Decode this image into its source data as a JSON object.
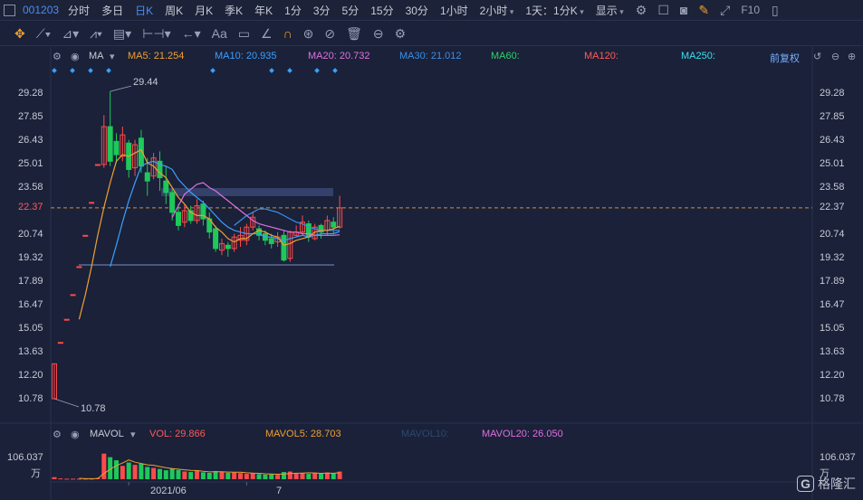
{
  "toolbar": {
    "code": "001203",
    "periods": [
      "分时",
      "多日",
      "日K",
      "周K",
      "月K",
      "季K",
      "年K",
      "1分",
      "3分",
      "5分",
      "15分",
      "30分",
      "1小时",
      "2小时"
    ],
    "active_period": "日K",
    "multi": "1天：1分K",
    "display": "显示",
    "f10": "F10"
  },
  "drawing_tools": {
    "text_tool": "Aa"
  },
  "ma_legend": {
    "ma": "MA",
    "ma5": "MA5: 21.254",
    "ma10": "MA10: 20.935",
    "ma20": "MA20: 20.732",
    "ma30": "MA30: 21.012",
    "ma60": "MA60:",
    "ma120": "MA120:",
    "ma250": "MA250:",
    "adjust": "前复权"
  },
  "price_axis": {
    "labels": [
      "29.28",
      "27.85",
      "26.43",
      "25.01",
      "23.58",
      "22.37",
      "20.74",
      "19.32",
      "17.89",
      "16.47",
      "15.05",
      "13.63",
      "12.20",
      "10.78"
    ],
    "current": "22.37",
    "high_mark": "29.44",
    "low_mark": "10.78"
  },
  "vol_legend": {
    "name": "MAVOL",
    "vol": "VOL: 29.866",
    "mavol5": "MAVOL5: 28.703",
    "mavol10": "MAVOL10:",
    "mavol20": "MAVOL20: 26.050"
  },
  "vol_axis": {
    "value": "106.037",
    "unit": "万"
  },
  "x_axis": {
    "labels": [
      "2021/06",
      "7"
    ]
  },
  "colors": {
    "up": "#ff4a4a",
    "down": "#1ec85a",
    "ma5": "#f0a030",
    "ma10": "#3aa0ff",
    "ma20": "#e070e0",
    "ma30": "#3a8fe8"
  },
  "chart_data": {
    "type": "candlestick",
    "ylim": [
      10.78,
      29.28
    ],
    "candles": [
      {
        "o": 10.78,
        "c": 12.9,
        "h": 12.9,
        "l": 10.78
      },
      {
        "o": 14.2,
        "c": 14.2,
        "h": 14.2,
        "l": 14.2
      },
      {
        "o": 15.6,
        "c": 15.6,
        "h": 15.6,
        "l": 15.6
      },
      {
        "o": 17.1,
        "c": 17.1,
        "h": 17.1,
        "l": 17.1
      },
      {
        "o": 18.8,
        "c": 18.8,
        "h": 18.8,
        "l": 18.8
      },
      {
        "o": 20.7,
        "c": 20.7,
        "h": 20.7,
        "l": 20.7
      },
      {
        "o": 22.7,
        "c": 22.7,
        "h": 22.7,
        "l": 22.7
      },
      {
        "o": 25.0,
        "c": 25.0,
        "h": 25.0,
        "l": 25.0
      },
      {
        "o": 25.0,
        "c": 27.3,
        "h": 28.0,
        "l": 24.8
      },
      {
        "o": 27.3,
        "c": 25.2,
        "h": 29.44,
        "l": 24.9
      },
      {
        "o": 26.4,
        "c": 25.6,
        "h": 26.9,
        "l": 25.1
      },
      {
        "o": 25.5,
        "c": 26.8,
        "h": 27.3,
        "l": 25.2
      },
      {
        "o": 26.3,
        "c": 24.7,
        "h": 26.5,
        "l": 24.2
      },
      {
        "o": 24.8,
        "c": 26.2,
        "h": 26.5,
        "l": 24.3
      },
      {
        "o": 26.6,
        "c": 24.9,
        "h": 27.1,
        "l": 24.5
      },
      {
        "o": 24.5,
        "c": 24.0,
        "h": 25.4,
        "l": 23.1
      },
      {
        "o": 24.3,
        "c": 25.4,
        "h": 25.7,
        "l": 24.1
      },
      {
        "o": 25.2,
        "c": 24.2,
        "h": 25.8,
        "l": 23.4
      },
      {
        "o": 24.0,
        "c": 23.3,
        "h": 24.9,
        "l": 22.6
      },
      {
        "o": 23.3,
        "c": 22.1,
        "h": 23.5,
        "l": 21.6
      },
      {
        "o": 22.1,
        "c": 21.3,
        "h": 22.6,
        "l": 21.0
      },
      {
        "o": 21.5,
        "c": 22.2,
        "h": 22.6,
        "l": 21.2
      },
      {
        "o": 22.2,
        "c": 21.6,
        "h": 22.5,
        "l": 21.4
      },
      {
        "o": 21.6,
        "c": 22.5,
        "h": 22.9,
        "l": 21.4
      },
      {
        "o": 22.6,
        "c": 21.7,
        "h": 22.8,
        "l": 21.3
      },
      {
        "o": 21.7,
        "c": 20.9,
        "h": 22.1,
        "l": 20.5
      },
      {
        "o": 21.1,
        "c": 19.9,
        "h": 21.3,
        "l": 19.7
      },
      {
        "o": 19.8,
        "c": 20.2,
        "h": 20.5,
        "l": 19.5
      },
      {
        "o": 20.1,
        "c": 19.9,
        "h": 20.3,
        "l": 19.4
      },
      {
        "o": 19.9,
        "c": 20.6,
        "h": 20.8,
        "l": 19.7
      },
      {
        "o": 20.4,
        "c": 20.7,
        "h": 21.2,
        "l": 20.0
      },
      {
        "o": 20.4,
        "c": 21.2,
        "h": 21.4,
        "l": 20.1
      },
      {
        "o": 21.2,
        "c": 21.8,
        "h": 22.1,
        "l": 21.0
      },
      {
        "o": 21.1,
        "c": 20.7,
        "h": 21.3,
        "l": 20.4
      },
      {
        "o": 20.8,
        "c": 20.4,
        "h": 21.0,
        "l": 20.1
      },
      {
        "o": 20.5,
        "c": 20.2,
        "h": 20.8,
        "l": 19.9
      },
      {
        "o": 20.3,
        "c": 20.6,
        "h": 20.9,
        "l": 20.0
      },
      {
        "o": 20.7,
        "c": 19.2,
        "h": 21.0,
        "l": 19.1
      },
      {
        "o": 19.3,
        "c": 20.9,
        "h": 21.0,
        "l": 19.1
      },
      {
        "o": 20.7,
        "c": 20.9,
        "h": 21.3,
        "l": 20.6
      },
      {
        "o": 20.9,
        "c": 21.5,
        "h": 21.9,
        "l": 20.7
      },
      {
        "o": 21.4,
        "c": 20.6,
        "h": 21.6,
        "l": 20.3
      },
      {
        "o": 20.5,
        "c": 21.2,
        "h": 21.4,
        "l": 20.4
      },
      {
        "o": 21.3,
        "c": 20.9,
        "h": 21.4,
        "l": 20.5
      },
      {
        "o": 21.0,
        "c": 21.6,
        "h": 21.9,
        "l": 20.7
      },
      {
        "o": 21.5,
        "c": 21.2,
        "h": 21.8,
        "l": 20.8
      },
      {
        "o": 21.2,
        "c": 22.37,
        "h": 23.1,
        "l": 21.1
      }
    ],
    "ma5": [
      null,
      null,
      null,
      null,
      15.6,
      17.1,
      18.8,
      20.7,
      22.4,
      23.9,
      25.2,
      25.6,
      25.5,
      25.7,
      25.9,
      25.1,
      24.9,
      24.5,
      24.2,
      23.6,
      23.0,
      22.6,
      22.1,
      21.9,
      21.9,
      21.7,
      21.2,
      20.9,
      20.5,
      20.3,
      20.5,
      20.5,
      20.8,
      21.0,
      20.9,
      20.7,
      20.6,
      20.1,
      20.2,
      20.4,
      20.5,
      20.6,
      20.9,
      21.0,
      21.0,
      21.1,
      21.254
    ],
    "ma10": [
      null,
      null,
      null,
      null,
      null,
      null,
      null,
      null,
      null,
      18.8,
      20.1,
      21.5,
      22.8,
      23.9,
      24.9,
      25.1,
      25.2,
      25.0,
      24.9,
      24.7,
      24.1,
      23.7,
      23.3,
      23.0,
      22.7,
      22.3,
      21.9,
      21.5,
      21.2,
      21.0,
      20.9,
      20.8,
      20.8,
      20.8,
      20.6,
      20.6,
      20.5,
      20.4,
      20.5,
      20.6,
      20.7,
      20.6,
      20.7,
      20.8,
      20.8,
      20.8,
      20.935
    ],
    "ma20": [
      null,
      null,
      null,
      null,
      null,
      null,
      null,
      null,
      null,
      null,
      null,
      null,
      null,
      null,
      null,
      null,
      null,
      null,
      null,
      21.8,
      22.5,
      23.2,
      23.5,
      23.8,
      23.9,
      23.6,
      23.4,
      23.1,
      22.8,
      22.5,
      22.2,
      21.9,
      21.6,
      21.4,
      21.3,
      21.2,
      21.1,
      21.0,
      20.9,
      20.9,
      20.8,
      20.8,
      20.7,
      20.7,
      20.7,
      20.7,
      20.732
    ],
    "ma30": [
      null,
      null,
      null,
      null,
      null,
      null,
      null,
      null,
      null,
      null,
      null,
      null,
      null,
      null,
      null,
      null,
      null,
      null,
      null,
      null,
      null,
      null,
      null,
      null,
      null,
      null,
      null,
      null,
      null,
      21.3,
      21.6,
      21.9,
      22.1,
      22.3,
      22.3,
      22.2,
      22.1,
      21.9,
      21.7,
      21.5,
      21.4,
      21.2,
      21.1,
      21.0,
      21.0,
      21.0,
      21.012
    ],
    "volumes": [
      8,
      3,
      2,
      2,
      2,
      2,
      2,
      5,
      100,
      86,
      74,
      52,
      65,
      56,
      60,
      48,
      44,
      40,
      35,
      42,
      36,
      30,
      28,
      33,
      27,
      25,
      32,
      30,
      25,
      26,
      24,
      21,
      23,
      20,
      18,
      19,
      17,
      28,
      30,
      22,
      24,
      21,
      25,
      22,
      26,
      23,
      29.866
    ],
    "vol_ylim": [
      0,
      106.037
    ],
    "xlabels": [
      {
        "index": 12,
        "label": "2021/06"
      },
      {
        "index": 31,
        "label": "7"
      }
    ]
  }
}
